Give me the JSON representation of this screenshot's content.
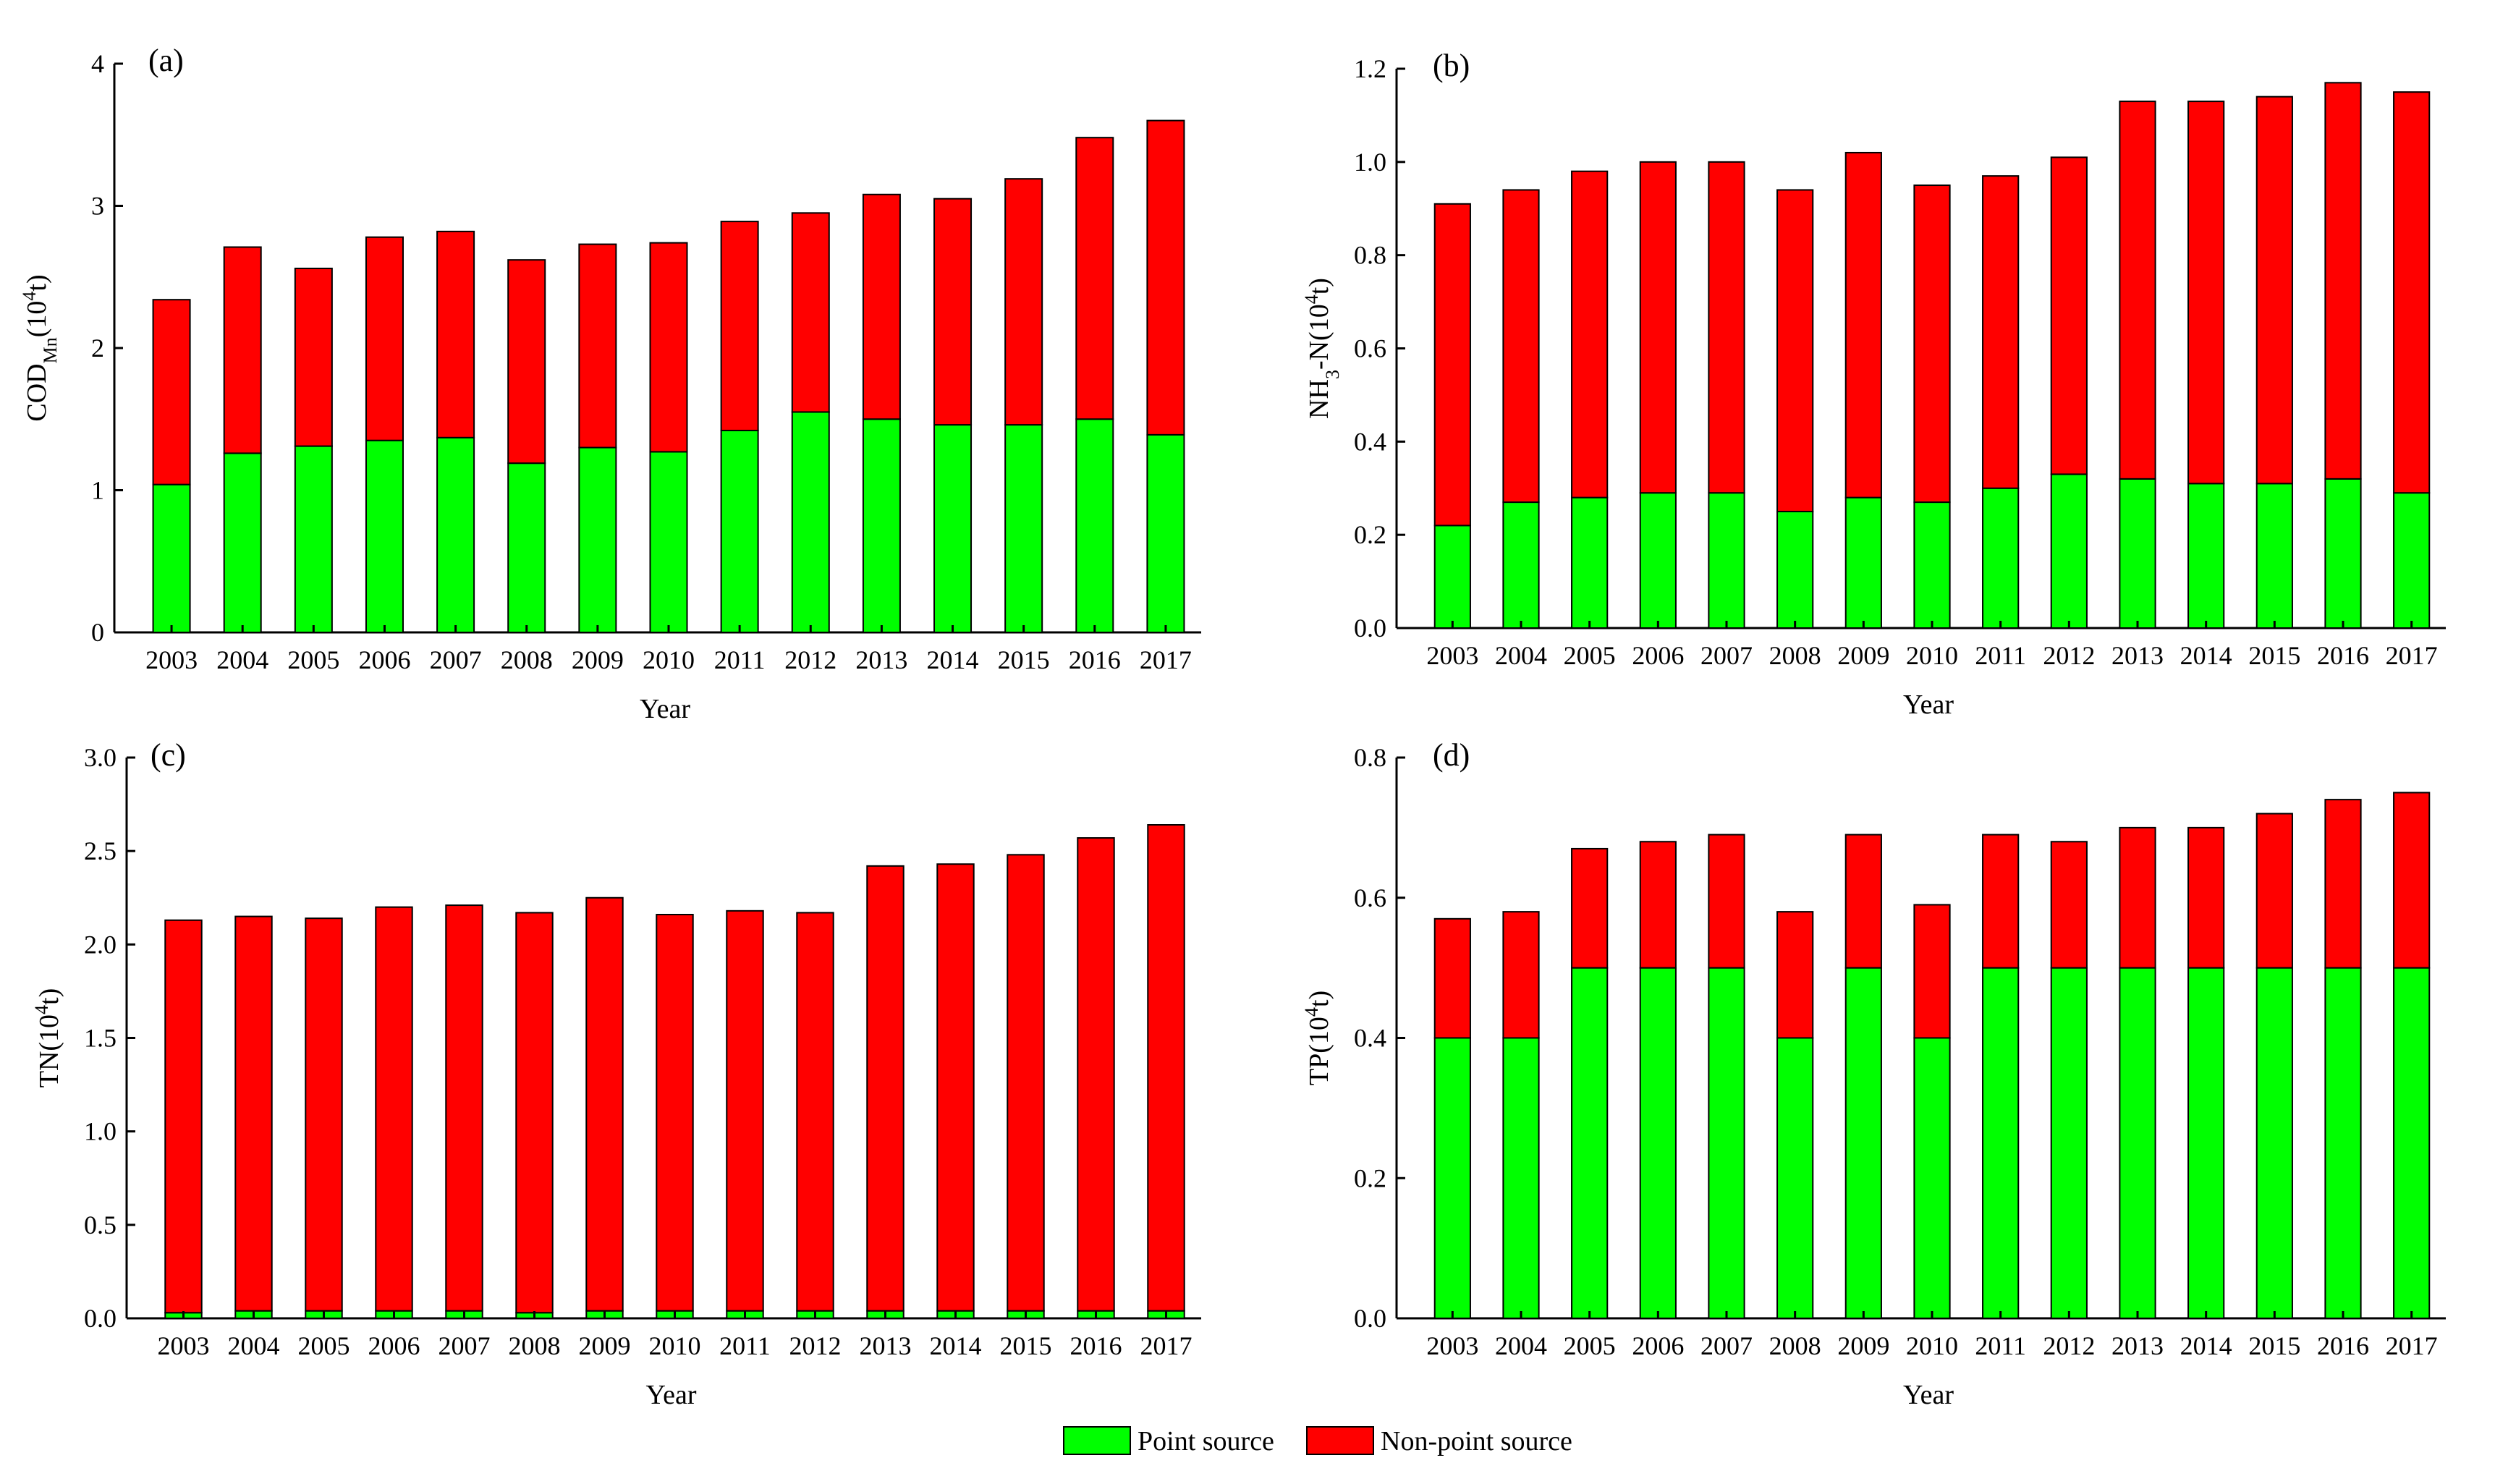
{
  "colors": {
    "point": "#00ff00",
    "nonpoint": "#ff0000",
    "stroke": "#000000"
  },
  "legend": {
    "point_label": "Point source",
    "nonpoint_label": "Non-point source"
  },
  "chart_data": [
    {
      "panel": "(a)",
      "type": "bar",
      "stacked": true,
      "xlabel": "Year",
      "ylabel_main": "COD",
      "ylabel_sub": "Mn",
      "ylabel_unit_pre": "(10",
      "ylabel_unit_sup": "4",
      "ylabel_unit_post": "t)",
      "ylim": [
        0,
        4
      ],
      "yticks": [
        "0",
        "1",
        "2",
        "3",
        "4"
      ],
      "categories": [
        "2003",
        "2004",
        "2005",
        "2006",
        "2007",
        "2008",
        "2009",
        "2010",
        "2011",
        "2012",
        "2013",
        "2014",
        "2015",
        "2016",
        "2017"
      ],
      "series": [
        {
          "name": "Point source",
          "values": [
            1.04,
            1.26,
            1.31,
            1.35,
            1.37,
            1.19,
            1.3,
            1.27,
            1.42,
            1.55,
            1.5,
            1.46,
            1.46,
            1.5,
            1.39
          ]
        },
        {
          "name": "Non-point source",
          "values": [
            1.3,
            1.45,
            1.25,
            1.43,
            1.45,
            1.43,
            1.43,
            1.47,
            1.47,
            1.4,
            1.58,
            1.59,
            1.73,
            1.98,
            2.21
          ]
        }
      ]
    },
    {
      "panel": "(b)",
      "type": "bar",
      "stacked": true,
      "xlabel": "Year",
      "ylabel_main": "NH",
      "ylabel_sub": "3",
      "ylabel_after_sub": "-N",
      "ylabel_unit_pre": "(10",
      "ylabel_unit_sup": "4",
      "ylabel_unit_post": "t)",
      "ylim": [
        0,
        1.2
      ],
      "yticks": [
        "0.0",
        "0.2",
        "0.4",
        "0.6",
        "0.8",
        "1.0",
        "1.2"
      ],
      "categories": [
        "2003",
        "2004",
        "2005",
        "2006",
        "2007",
        "2008",
        "2009",
        "2010",
        "2011",
        "2012",
        "2013",
        "2014",
        "2015",
        "2016",
        "2017"
      ],
      "series": [
        {
          "name": "Point source",
          "values": [
            0.22,
            0.27,
            0.28,
            0.29,
            0.29,
            0.25,
            0.28,
            0.27,
            0.3,
            0.33,
            0.32,
            0.31,
            0.31,
            0.32,
            0.29
          ]
        },
        {
          "name": "Non-point source",
          "values": [
            0.69,
            0.67,
            0.7,
            0.71,
            0.71,
            0.69,
            0.74,
            0.68,
            0.67,
            0.68,
            0.81,
            0.82,
            0.83,
            0.85,
            0.86
          ]
        }
      ]
    },
    {
      "panel": "(c)",
      "type": "bar",
      "stacked": true,
      "xlabel": "Year",
      "ylabel_main": "TN",
      "ylabel_unit_pre": "(10",
      "ylabel_unit_sup": "4",
      "ylabel_unit_post": "t)",
      "ylim": [
        0,
        3.0
      ],
      "yticks": [
        "0.0",
        "0.5",
        "1.0",
        "1.5",
        "2.0",
        "2.5",
        "3.0"
      ],
      "categories": [
        "2003",
        "2004",
        "2005",
        "2006",
        "2007",
        "2008",
        "2009",
        "2010",
        "2011",
        "2012",
        "2013",
        "2014",
        "2015",
        "2016",
        "2017"
      ],
      "series": [
        {
          "name": "Point source",
          "values": [
            0.03,
            0.04,
            0.04,
            0.04,
            0.04,
            0.03,
            0.04,
            0.04,
            0.04,
            0.04,
            0.04,
            0.04,
            0.04,
            0.04,
            0.04
          ]
        },
        {
          "name": "Non-point source",
          "values": [
            2.1,
            2.11,
            2.1,
            2.16,
            2.17,
            2.14,
            2.21,
            2.12,
            2.14,
            2.13,
            2.38,
            2.39,
            2.44,
            2.53,
            2.6
          ]
        }
      ]
    },
    {
      "panel": "(d)",
      "type": "bar",
      "stacked": true,
      "xlabel": "Year",
      "ylabel_main": "TP",
      "ylabel_unit_pre": "(10",
      "ylabel_unit_sup": "4",
      "ylabel_unit_post": "t)",
      "ylim": [
        0,
        0.8
      ],
      "yticks": [
        "0.0",
        "0.2",
        "0.4",
        "0.6",
        "0.8"
      ],
      "categories": [
        "2003",
        "2004",
        "2005",
        "2006",
        "2007",
        "2008",
        "2009",
        "2010",
        "2011",
        "2012",
        "2013",
        "2014",
        "2015",
        "2016",
        "2017"
      ],
      "series": [
        {
          "name": "Point source",
          "values": [
            0.4,
            0.4,
            0.5,
            0.5,
            0.5,
            0.4,
            0.5,
            0.4,
            0.5,
            0.5,
            0.5,
            0.5,
            0.5,
            0.5,
            0.5
          ]
        },
        {
          "name": "Non-point source",
          "values": [
            0.17,
            0.18,
            0.17,
            0.18,
            0.19,
            0.18,
            0.19,
            0.19,
            0.19,
            0.18,
            0.2,
            0.2,
            0.22,
            0.24,
            0.25
          ]
        }
      ]
    }
  ]
}
